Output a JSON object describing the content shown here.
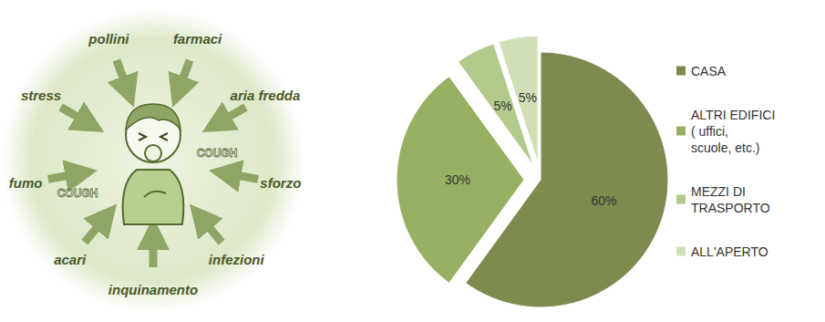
{
  "illustration": {
    "factors": [
      "stress",
      "pollini",
      "farmaci",
      "aria fredda",
      "sforzo",
      "infezioni",
      "inquinamento",
      "acari",
      "fumo"
    ],
    "sounds": [
      "COUGH",
      "COUGH"
    ]
  },
  "chart_data": {
    "type": "pie",
    "categories": [
      "CASA",
      "ALTRI EDIFICI ( uffici, scuole, etc.)",
      "MEZZI DI TRASPORTO",
      "ALL'APERTO"
    ],
    "values": [
      60,
      30,
      5,
      5
    ],
    "value_labels": [
      "60%",
      "30%",
      "5%",
      "5%"
    ],
    "colors": [
      "#7d8b4f",
      "#97b062",
      "#b3ca8c",
      "#d0e0b6"
    ],
    "data_labels": true,
    "legend": "right"
  }
}
